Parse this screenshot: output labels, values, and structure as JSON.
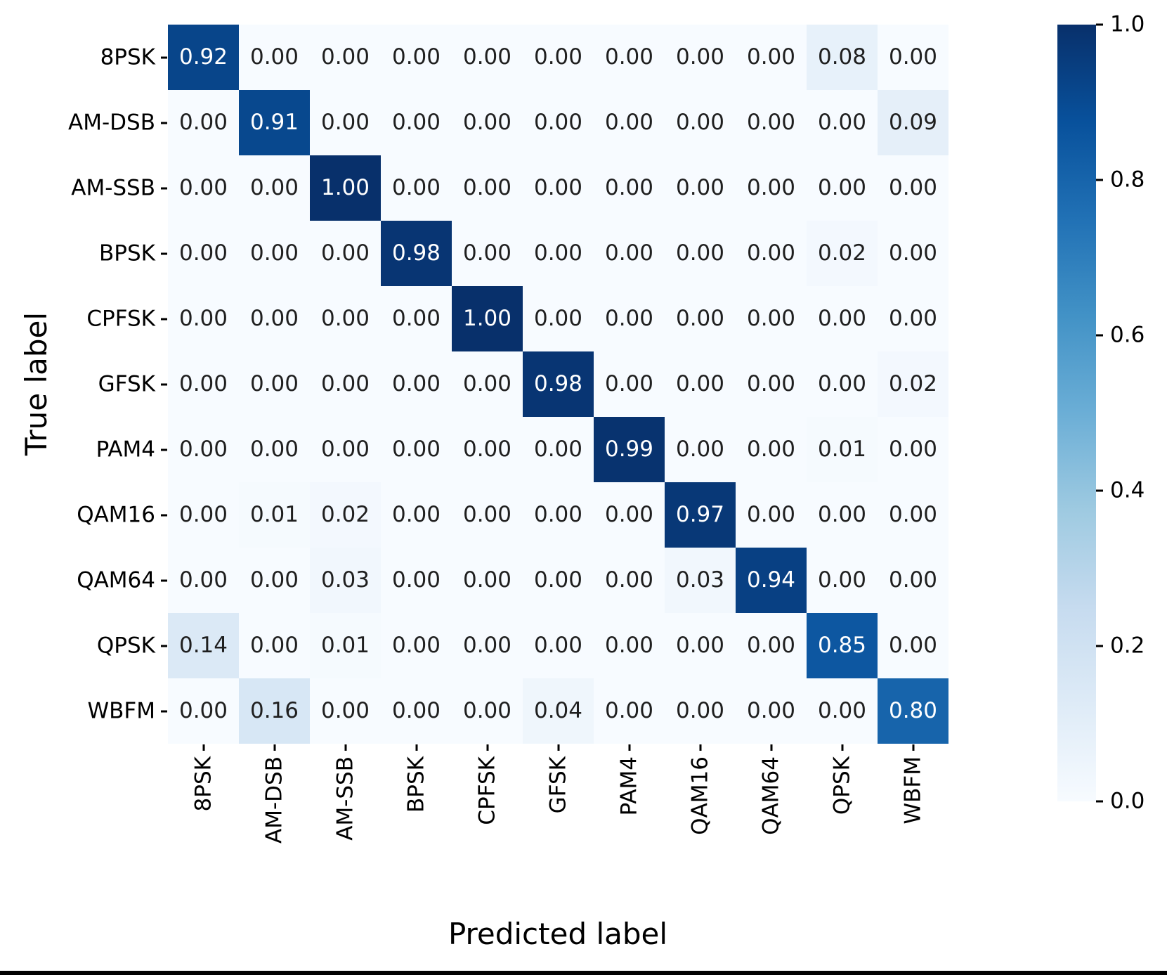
{
  "chart_data": {
    "type": "heatmap",
    "title": "",
    "xlabel": "Predicted label",
    "ylabel": "True label",
    "categories": [
      "8PSK",
      "AM-DSB",
      "AM-SSB",
      "BPSK",
      "CPFSK",
      "GFSK",
      "PAM4",
      "QAM16",
      "QAM64",
      "QPSK",
      "WBFM"
    ],
    "matrix": [
      [
        0.92,
        0.0,
        0.0,
        0.0,
        0.0,
        0.0,
        0.0,
        0.0,
        0.0,
        0.08,
        0.0
      ],
      [
        0.0,
        0.91,
        0.0,
        0.0,
        0.0,
        0.0,
        0.0,
        0.0,
        0.0,
        0.0,
        0.09
      ],
      [
        0.0,
        0.0,
        1.0,
        0.0,
        0.0,
        0.0,
        0.0,
        0.0,
        0.0,
        0.0,
        0.0
      ],
      [
        0.0,
        0.0,
        0.0,
        0.98,
        0.0,
        0.0,
        0.0,
        0.0,
        0.0,
        0.02,
        0.0
      ],
      [
        0.0,
        0.0,
        0.0,
        0.0,
        1.0,
        0.0,
        0.0,
        0.0,
        0.0,
        0.0,
        0.0
      ],
      [
        0.0,
        0.0,
        0.0,
        0.0,
        0.0,
        0.98,
        0.0,
        0.0,
        0.0,
        0.0,
        0.02
      ],
      [
        0.0,
        0.0,
        0.0,
        0.0,
        0.0,
        0.0,
        0.99,
        0.0,
        0.0,
        0.01,
        0.0
      ],
      [
        0.0,
        0.01,
        0.02,
        0.0,
        0.0,
        0.0,
        0.0,
        0.97,
        0.0,
        0.0,
        0.0
      ],
      [
        0.0,
        0.0,
        0.03,
        0.0,
        0.0,
        0.0,
        0.0,
        0.03,
        0.94,
        0.0,
        0.0
      ],
      [
        0.14,
        0.0,
        0.01,
        0.0,
        0.0,
        0.0,
        0.0,
        0.0,
        0.0,
        0.85,
        0.0
      ],
      [
        0.0,
        0.16,
        0.0,
        0.0,
        0.0,
        0.04,
        0.0,
        0.0,
        0.0,
        0.0,
        0.8
      ]
    ],
    "vmin": 0.0,
    "vmax": 1.0,
    "value_decimals": 2,
    "colormap": {
      "name": "Blues",
      "anchors": [
        "#f7fbff",
        "#deebf7",
        "#c6dbef",
        "#9ecae1",
        "#6baed6",
        "#4292c6",
        "#2171b5",
        "#08519c",
        "#08306b"
      ]
    },
    "annotation_color_dark": "#1f1f1f",
    "annotation_color_light": "#ffffff",
    "colorbar": {
      "position": "right",
      "tick_labels": [
        "1.0",
        "0.8",
        "0.6",
        "0.4",
        "0.2",
        "0.0"
      ]
    },
    "grid": false,
    "legend": false
  }
}
